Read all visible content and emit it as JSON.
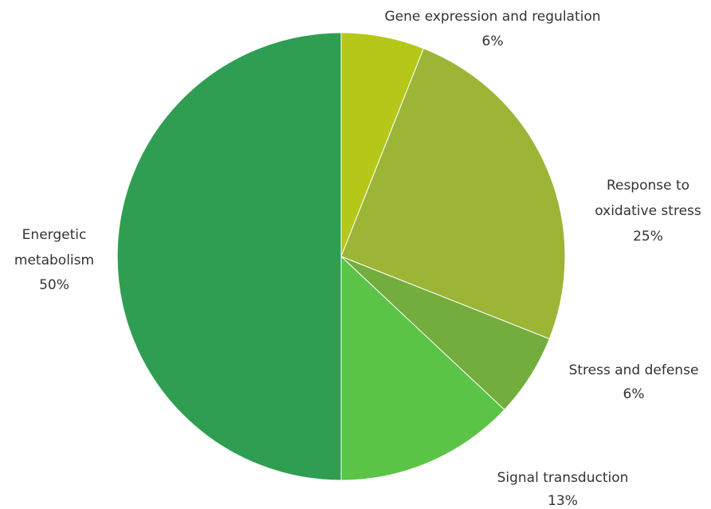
{
  "chart_data": {
    "type": "pie",
    "start_angle_deg": 0,
    "direction": "clockwise",
    "slices": [
      {
        "label": "Gene expression and regulation",
        "value_label": "6%",
        "value": 6,
        "color": "#b5c81a"
      },
      {
        "label": "Response to oxidative stress",
        "value_label": "25%",
        "value": 25,
        "color": "#9db536"
      },
      {
        "label": "Stress and defense",
        "value_label": "6%",
        "value": 6,
        "color": "#73ad3d"
      },
      {
        "label": "Signal transduction",
        "value_label": "13%",
        "value": 13,
        "color": "#5bc447"
      },
      {
        "label": "Energetic metabolism",
        "value_label": "50%",
        "value": 50,
        "color": "#2f9e52"
      }
    ]
  }
}
